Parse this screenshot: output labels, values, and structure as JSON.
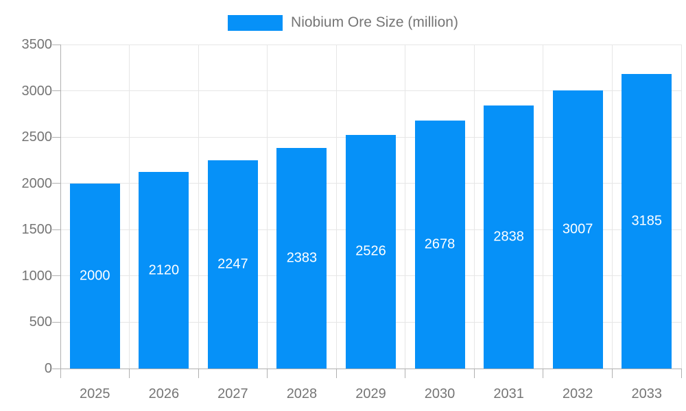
{
  "chart_data": {
    "type": "bar",
    "title": "",
    "series_name": "Niobium Ore Size (million)",
    "categories": [
      "2025",
      "2026",
      "2027",
      "2028",
      "2029",
      "2030",
      "2031",
      "2032",
      "2033"
    ],
    "values": [
      2000,
      2120,
      2247,
      2383,
      2526,
      2678,
      2838,
      3007,
      3185
    ],
    "xlabel": "",
    "ylabel": "",
    "ylim": [
      0,
      3500
    ],
    "ytick_step": 500,
    "ytick_labels": [
      "0",
      "500",
      "1000",
      "1500",
      "2000",
      "2500",
      "3000",
      "3500"
    ],
    "grid": true,
    "legend_position": "top",
    "value_labels_shown": true,
    "colors": {
      "bar": "#0691F8",
      "value_label": "#ffffff",
      "axis_text": "#757575",
      "grid_line": "#e6e6e6",
      "axis_line": "#b0b0b0",
      "background": "#ffffff"
    }
  }
}
